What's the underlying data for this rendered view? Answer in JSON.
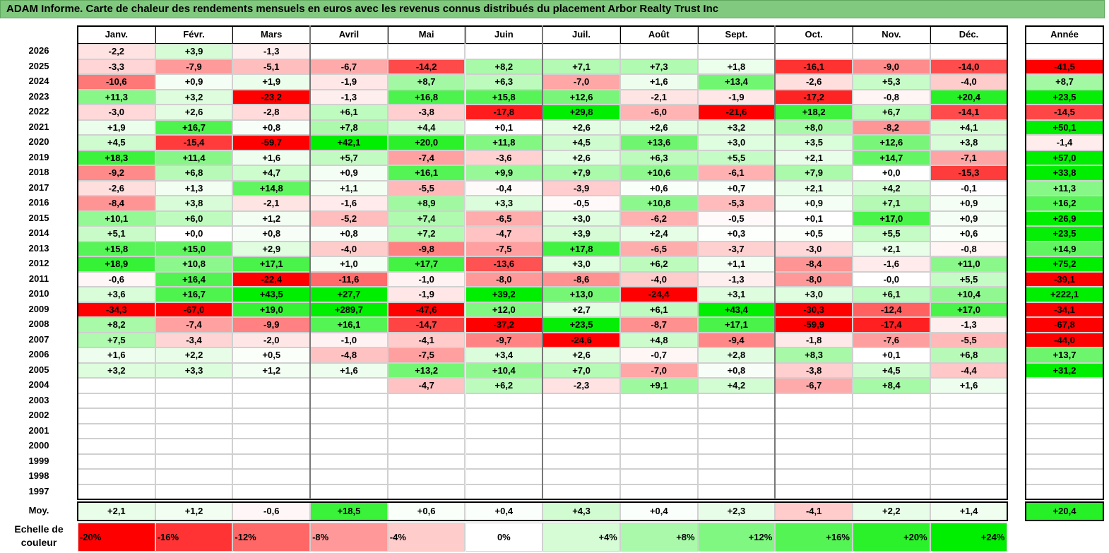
{
  "title": "ADAM Informe. Carte de chaleur des rendements mensuels en euros avec les revenus connus distribués du placement Arbor Realty Trust Inc",
  "colors": {
    "red": "#ff0000",
    "green": "#00ee00",
    "white": "#ffffff",
    "title_bg": "#80c97e"
  },
  "chart_data": {
    "type": "heatmap",
    "months": [
      "Janv.",
      "Févr.",
      "Mars",
      "Avril",
      "Mai",
      "Juin",
      "Juil.",
      "Août",
      "Sept.",
      "Oct.",
      "Nov.",
      "Déc."
    ],
    "year_header": "Année",
    "rows": [
      {
        "year": "2026",
        "values": [
          "-2,2",
          "+3,9",
          "-1,3",
          "",
          "",
          "",
          "",
          "",
          "",
          "",
          "",
          ""
        ],
        "annual": ""
      },
      {
        "year": "2025",
        "values": [
          "-3,3",
          "-7,9",
          "-5,1",
          "-6,7",
          "-14,2",
          "+8,2",
          "+7,1",
          "+7,3",
          "+1,8",
          "-16,1",
          "-9,0",
          "-14,0"
        ],
        "annual": "-41,5"
      },
      {
        "year": "2024",
        "values": [
          "-10,6",
          "+0,9",
          "+1,9",
          "-1,9",
          "+8,7",
          "+6,3",
          "-7,0",
          "+1,6",
          "+13,4",
          "-2,6",
          "+5,3",
          "-4,0"
        ],
        "annual": "+8,7"
      },
      {
        "year": "2023",
        "values": [
          "+11,3",
          "+3,2",
          "-23,2",
          "-1,3",
          "+16,8",
          "+15,8",
          "+12,6",
          "-2,1",
          "-1,9",
          "-17,2",
          "-0,8",
          "+20,4"
        ],
        "annual": "+23,5"
      },
      {
        "year": "2022",
        "values": [
          "-3,0",
          "+2,6",
          "-2,8",
          "+6,1",
          "-3,8",
          "-17,8",
          "+29,8",
          "-6,0",
          "-21,6",
          "+18,2",
          "+6,7",
          "-14,1"
        ],
        "annual": "-14,5"
      },
      {
        "year": "2021",
        "values": [
          "+1,9",
          "+16,7",
          "+0,8",
          "+7,8",
          "+4,4",
          "+0,1",
          "+2,6",
          "+2,6",
          "+3,2",
          "+8,0",
          "-8,2",
          "+4,1"
        ],
        "annual": "+50,1"
      },
      {
        "year": "2020",
        "values": [
          "+4,5",
          "-15,4",
          "-59,7",
          "+42,1",
          "+20,0",
          "+11,8",
          "+4,5",
          "+13,6",
          "+3,0",
          "+3,5",
          "+12,6",
          "+3,8"
        ],
        "annual": "-1,4"
      },
      {
        "year": "2019",
        "values": [
          "+18,3",
          "+11,4",
          "+1,6",
          "+5,7",
          "-7,4",
          "-3,6",
          "+2,6",
          "+6,3",
          "+5,5",
          "+2,1",
          "+14,7",
          "-7,1"
        ],
        "annual": "+57,0"
      },
      {
        "year": "2018",
        "values": [
          "-9,2",
          "+6,8",
          "+4,7",
          "+0,9",
          "+16,1",
          "+9,9",
          "+7,9",
          "+10,6",
          "-6,1",
          "+7,9",
          "+0,0",
          "-15,3"
        ],
        "annual": "+33,8"
      },
      {
        "year": "2017",
        "values": [
          "-2,6",
          "+1,3",
          "+14,8",
          "+1,1",
          "-5,5",
          "-0,4",
          "-3,9",
          "+0,6",
          "+0,7",
          "+2,1",
          "+4,2",
          "-0,1"
        ],
        "annual": "+11,3"
      },
      {
        "year": "2016",
        "values": [
          "-8,4",
          "+3,8",
          "-2,1",
          "-1,6",
          "+8,9",
          "+3,3",
          "-0,5",
          "+10,8",
          "-5,3",
          "+0,9",
          "+7,1",
          "+0,9"
        ],
        "annual": "+16,2"
      },
      {
        "year": "2015",
        "values": [
          "+10,1",
          "+6,0",
          "+1,2",
          "-5,2",
          "+7,4",
          "-6,5",
          "+3,0",
          "-6,2",
          "-0,5",
          "+0,1",
          "+17,0",
          "+0,9"
        ],
        "annual": "+26,9"
      },
      {
        "year": "2014",
        "values": [
          "+5,1",
          "+0,0",
          "+0,8",
          "+0,8",
          "+7,2",
          "-4,7",
          "+3,9",
          "+2,4",
          "+0,3",
          "+0,5",
          "+5,5",
          "+0,6"
        ],
        "annual": "+23,5"
      },
      {
        "year": "2013",
        "values": [
          "+15,8",
          "+15,0",
          "+2,9",
          "-4,0",
          "-9,8",
          "-7,5",
          "+17,8",
          "-6,5",
          "-3,7",
          "-3,0",
          "+2,1",
          "-0,8"
        ],
        "annual": "+14,9"
      },
      {
        "year": "2012",
        "values": [
          "+18,9",
          "+10,8",
          "+17,1",
          "+1,0",
          "+17,7",
          "-13,6",
          "+3,0",
          "+6,2",
          "+1,1",
          "-8,4",
          "-1,6",
          "+11,0"
        ],
        "annual": "+75,2"
      },
      {
        "year": "2011",
        "values": [
          "-0,6",
          "+16,4",
          "-22,4",
          "-11,6",
          "-1,0",
          "-8,0",
          "-8,6",
          "-4,0",
          "-1,3",
          "-8,0",
          "-0,0",
          "+5,5"
        ],
        "annual": "-39,1"
      },
      {
        "year": "2010",
        "values": [
          "+3,6",
          "+16,7",
          "+43,5",
          "+27,7",
          "-1,9",
          "+39,2",
          "+13,0",
          "-24,4",
          "+3,1",
          "+3,0",
          "+6,1",
          "+10,4"
        ],
        "annual": "+222,1"
      },
      {
        "year": "2009",
        "values": [
          "-34,3",
          "-67,0",
          "+19,0",
          "+289,7",
          "-47,6",
          "+12,0",
          "+2,7",
          "+6,1",
          "+43,4",
          "-30,3",
          "-12,4",
          "+17,0"
        ],
        "annual": "-34,1"
      },
      {
        "year": "2008",
        "values": [
          "+8,2",
          "-7,4",
          "-9,9",
          "+16,1",
          "-14,7",
          "-37,2",
          "+23,5",
          "-8,7",
          "+17,1",
          "-59,9",
          "-17,4",
          "-1,3"
        ],
        "annual": "-67,8"
      },
      {
        "year": "2007",
        "values": [
          "+7,5",
          "-3,4",
          "-2,0",
          "-1,0",
          "-4,1",
          "-9,7",
          "-24,6",
          "+4,8",
          "-9,4",
          "-1,8",
          "-7,6",
          "-5,5"
        ],
        "annual": "-44,0"
      },
      {
        "year": "2006",
        "values": [
          "+1,6",
          "+2,2",
          "+0,5",
          "-4,8",
          "-7,5",
          "+3,4",
          "+2,6",
          "-0,7",
          "+2,8",
          "+8,3",
          "+0,1",
          "+6,8"
        ],
        "annual": "+13,7"
      },
      {
        "year": "2005",
        "values": [
          "+3,2",
          "+3,3",
          "+1,2",
          "+1,6",
          "+13,2",
          "+10,4",
          "+7,0",
          "-7,0",
          "+0,8",
          "-3,8",
          "+4,5",
          "-4,4"
        ],
        "annual": "+31,2"
      },
      {
        "year": "2004",
        "values": [
          "",
          "",
          "",
          "",
          "-4,7",
          "+6,2",
          "-2,3",
          "+9,1",
          "+4,2",
          "-6,7",
          "+8,4",
          "+1,6"
        ],
        "annual": ""
      },
      {
        "year": "2003",
        "values": [
          "",
          "",
          "",
          "",
          "",
          "",
          "",
          "",
          "",
          "",
          "",
          ""
        ],
        "annual": ""
      },
      {
        "year": "2002",
        "values": [
          "",
          "",
          "",
          "",
          "",
          "",
          "",
          "",
          "",
          "",
          "",
          ""
        ],
        "annual": ""
      },
      {
        "year": "2001",
        "values": [
          "",
          "",
          "",
          "",
          "",
          "",
          "",
          "",
          "",
          "",
          "",
          ""
        ],
        "annual": ""
      },
      {
        "year": "2000",
        "values": [
          "",
          "",
          "",
          "",
          "",
          "",
          "",
          "",
          "",
          "",
          "",
          ""
        ],
        "annual": ""
      },
      {
        "year": "1999",
        "values": [
          "",
          "",
          "",
          "",
          "",
          "",
          "",
          "",
          "",
          "",
          "",
          ""
        ],
        "annual": ""
      },
      {
        "year": "1998",
        "values": [
          "",
          "",
          "",
          "",
          "",
          "",
          "",
          "",
          "",
          "",
          "",
          ""
        ],
        "annual": ""
      },
      {
        "year": "1997",
        "values": [
          "",
          "",
          "",
          "",
          "",
          "",
          "",
          "",
          "",
          "",
          "",
          ""
        ],
        "annual": ""
      }
    ],
    "average": {
      "label": "Moy.",
      "values": [
        "+2,1",
        "+1,2",
        "-0,6",
        "+18,5",
        "+0,6",
        "+0,4",
        "+4,3",
        "+0,4",
        "+2,3",
        "-4,1",
        "+2,2",
        "+1,4"
      ],
      "annual": "+20,4"
    },
    "scale": {
      "label_line1": "Echelle de",
      "label_line2": "couleur",
      "steps": [
        "-20%",
        "-16%",
        "-12%",
        "-8%",
        "-4%",
        "0%",
        "+4%",
        "+8%",
        "+12%",
        "+16%",
        "+20%",
        "+24%"
      ],
      "values": [
        -20,
        -16,
        -12,
        -8,
        -4,
        0,
        4,
        8,
        12,
        16,
        20,
        24
      ]
    }
  }
}
